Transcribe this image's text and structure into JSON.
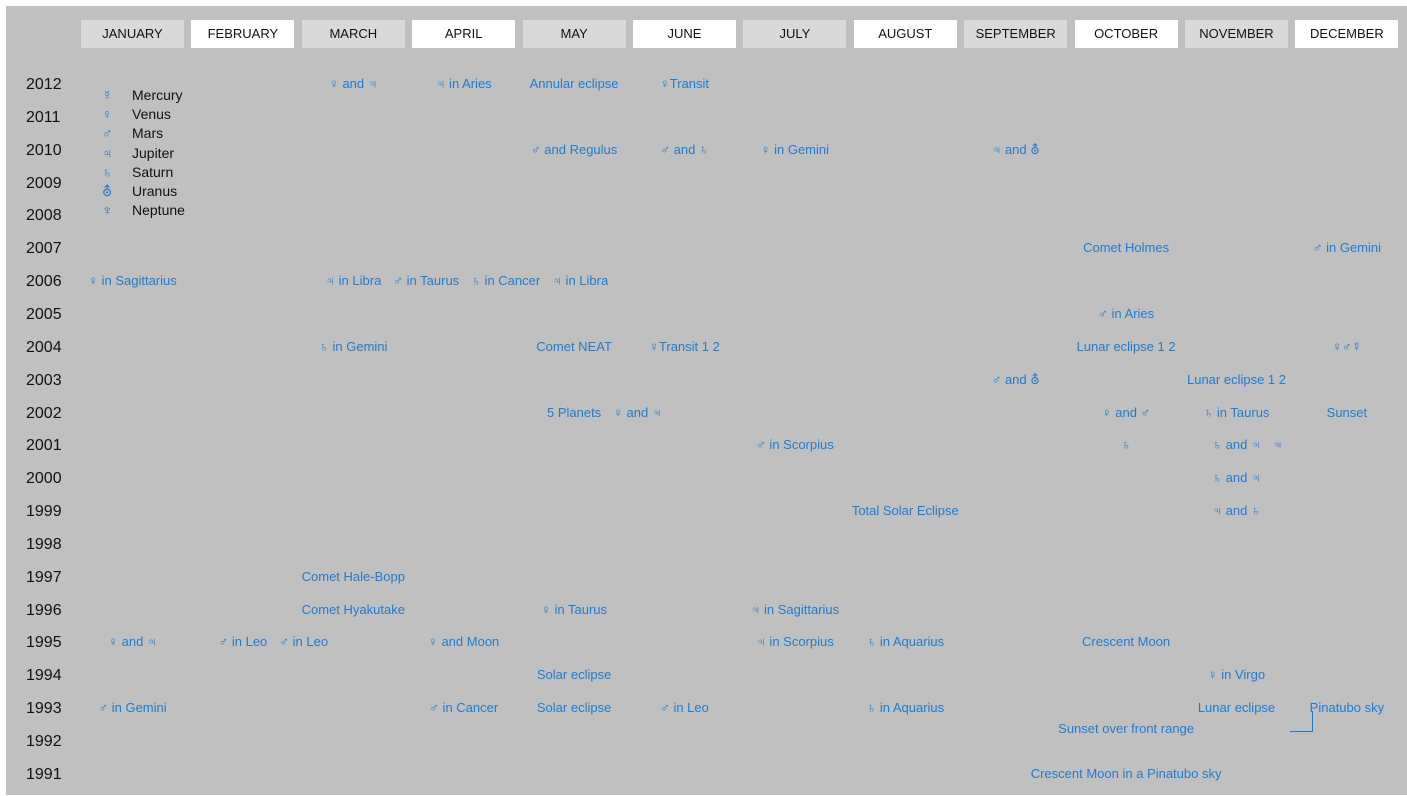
{
  "chart_data": {
    "type": "table",
    "months": [
      "JANUARY",
      "FEBRUARY",
      "MARCH",
      "APRIL",
      "MAY",
      "JUNE",
      "JULY",
      "AUGUST",
      "SEPTEMBER",
      "OCTOBER",
      "NOVEMBER",
      "DECEMBER"
    ],
    "years": [
      "2012",
      "2011",
      "2010",
      "2009",
      "2008",
      "2007",
      "2006",
      "2005",
      "2004",
      "2003",
      "2002",
      "2001",
      "2000",
      "1999",
      "1998",
      "1997",
      "1996",
      "1995",
      "1994",
      "1993",
      "1992",
      "1991"
    ],
    "legend": [
      {
        "symbol": "☿",
        "name": "Mercury"
      },
      {
        "symbol": "♀",
        "name": "Venus"
      },
      {
        "symbol": "♂",
        "name": "Mars"
      },
      {
        "symbol": "♃",
        "name": "Jupiter"
      },
      {
        "symbol": "♄",
        "name": "Saturn"
      },
      {
        "symbol": "⛢",
        "name": "Uranus"
      },
      {
        "symbol": "♆",
        "name": "Neptune"
      }
    ],
    "events": [
      {
        "year": "2012",
        "month": "MARCH",
        "label": "♀ and ♃"
      },
      {
        "year": "2012",
        "month": "APRIL",
        "label": "♃ in Aries"
      },
      {
        "year": "2012",
        "month": "MAY",
        "label": "Annular eclipse"
      },
      {
        "year": "2012",
        "month": "JUNE",
        "label": "♀Transit"
      },
      {
        "year": "2010",
        "month": "MAY",
        "label": "♂ and Regulus"
      },
      {
        "year": "2010",
        "month": "JUNE",
        "label": "♂ and ♄"
      },
      {
        "year": "2010",
        "month": "JULY",
        "label": "♀ in Gemini"
      },
      {
        "year": "2010",
        "month": "SEPTEMBER",
        "label": "♃ and ⛢"
      },
      {
        "year": "2007",
        "month": "OCTOBER",
        "label": "Comet Holmes"
      },
      {
        "year": "2007",
        "month": "DECEMBER",
        "label": "♂ in Gemini"
      },
      {
        "year": "2006",
        "month": "JANUARY",
        "label": "♀ in Sagittarius"
      },
      {
        "year": "2006",
        "month": "MARCH",
        "label": "♃ in Libra"
      },
      {
        "year": "2006",
        "month": "MARCH",
        "label": "♂ in Taurus"
      },
      {
        "year": "2006",
        "month": "APRIL",
        "label": "♄ in Cancer"
      },
      {
        "year": "2006",
        "month": "MAY",
        "label": "♃ in Libra"
      },
      {
        "year": "2005",
        "month": "OCTOBER",
        "label": "♂ in Aries"
      },
      {
        "year": "2004",
        "month": "MARCH",
        "label": "♄ in Gemini"
      },
      {
        "year": "2004",
        "month": "MAY",
        "label": "Comet NEAT"
      },
      {
        "year": "2004",
        "month": "JUNE",
        "label": "♀Transit 1 2"
      },
      {
        "year": "2004",
        "month": "OCTOBER",
        "label": "Lunar eclipse 1 2"
      },
      {
        "year": "2004",
        "month": "DECEMBER",
        "label": "♀♂☿"
      },
      {
        "year": "2003",
        "month": "SEPTEMBER",
        "label": "♂ and ⛢"
      },
      {
        "year": "2003",
        "month": "NOVEMBER",
        "label": "Lunar eclipse 1 2"
      },
      {
        "year": "2002",
        "month": "MAY",
        "label": "5 Planets"
      },
      {
        "year": "2002",
        "month": "MAY",
        "label": "♀ and ♃"
      },
      {
        "year": "2002",
        "month": "OCTOBER",
        "label": "♀ and ♂"
      },
      {
        "year": "2002",
        "month": "NOVEMBER",
        "label": "♄ in Taurus"
      },
      {
        "year": "2002",
        "month": "DECEMBER",
        "label": "Sunset"
      },
      {
        "year": "2001",
        "month": "JULY",
        "label": "♂ in Scorpius"
      },
      {
        "year": "2001",
        "month": "OCTOBER",
        "label": "♄"
      },
      {
        "year": "2001",
        "month": "NOVEMBER",
        "label": "♄ and ♃"
      },
      {
        "year": "2001",
        "month": "NOVEMBER",
        "label": "♃"
      },
      {
        "year": "2000",
        "month": "NOVEMBER",
        "label": "♄ and ♃"
      },
      {
        "year": "1999",
        "month": "AUGUST",
        "label": "Total Solar Eclipse"
      },
      {
        "year": "1999",
        "month": "NOVEMBER",
        "label": "♃ and ♄"
      },
      {
        "year": "1997",
        "month": "MARCH",
        "label": "Comet Hale-Bopp"
      },
      {
        "year": "1996",
        "month": "MARCH",
        "label": "Comet Hyakutake"
      },
      {
        "year": "1996",
        "month": "MAY",
        "label": "♀ in Taurus"
      },
      {
        "year": "1996",
        "month": "JULY",
        "label": "♃ in Sagittarius"
      },
      {
        "year": "1995",
        "month": "JANUARY",
        "label": "♀ and ♃"
      },
      {
        "year": "1995",
        "month": "FEBRUARY",
        "label": "♂ in Leo"
      },
      {
        "year": "1995",
        "month": "FEBRUARY",
        "label": "♂ in Leo"
      },
      {
        "year": "1995",
        "month": "APRIL",
        "label": "♀ and Moon"
      },
      {
        "year": "1995",
        "month": "JULY",
        "label": "♃ in Scorpius"
      },
      {
        "year": "1995",
        "month": "AUGUST",
        "label": "♄ in Aquarius"
      },
      {
        "year": "1995",
        "month": "OCTOBER",
        "label": "Crescent Moon"
      },
      {
        "year": "1994",
        "month": "MAY",
        "label": "Solar eclipse"
      },
      {
        "year": "1994",
        "month": "NOVEMBER",
        "label": "♀ in Virgo"
      },
      {
        "year": "1993",
        "month": "JANUARY",
        "label": "♂ in Gemini"
      },
      {
        "year": "1993",
        "month": "APRIL",
        "label": "♂ in Cancer"
      },
      {
        "year": "1993",
        "month": "MAY",
        "label": "Solar eclipse"
      },
      {
        "year": "1993",
        "month": "JUNE",
        "label": "♂ in Leo"
      },
      {
        "year": "1993",
        "month": "AUGUST",
        "label": "♄ in Aquarius"
      },
      {
        "year": "1993",
        "month": "NOVEMBER",
        "label": "Lunar eclipse"
      },
      {
        "year": "1993",
        "month": "DECEMBER",
        "label": "Pinatubo sky"
      },
      {
        "year": "1992",
        "month": "OCTOBER",
        "label": "Sunset over front range"
      },
      {
        "year": "1991",
        "month": "OCTOBER",
        "label": "Crescent Moon in a Pinatubo sky"
      }
    ],
    "colors": {
      "background": "#c0c0c0",
      "header_odd": "#d9d9d9",
      "header_even": "#ffffff",
      "event_text": "#1f7bd0"
    }
  }
}
